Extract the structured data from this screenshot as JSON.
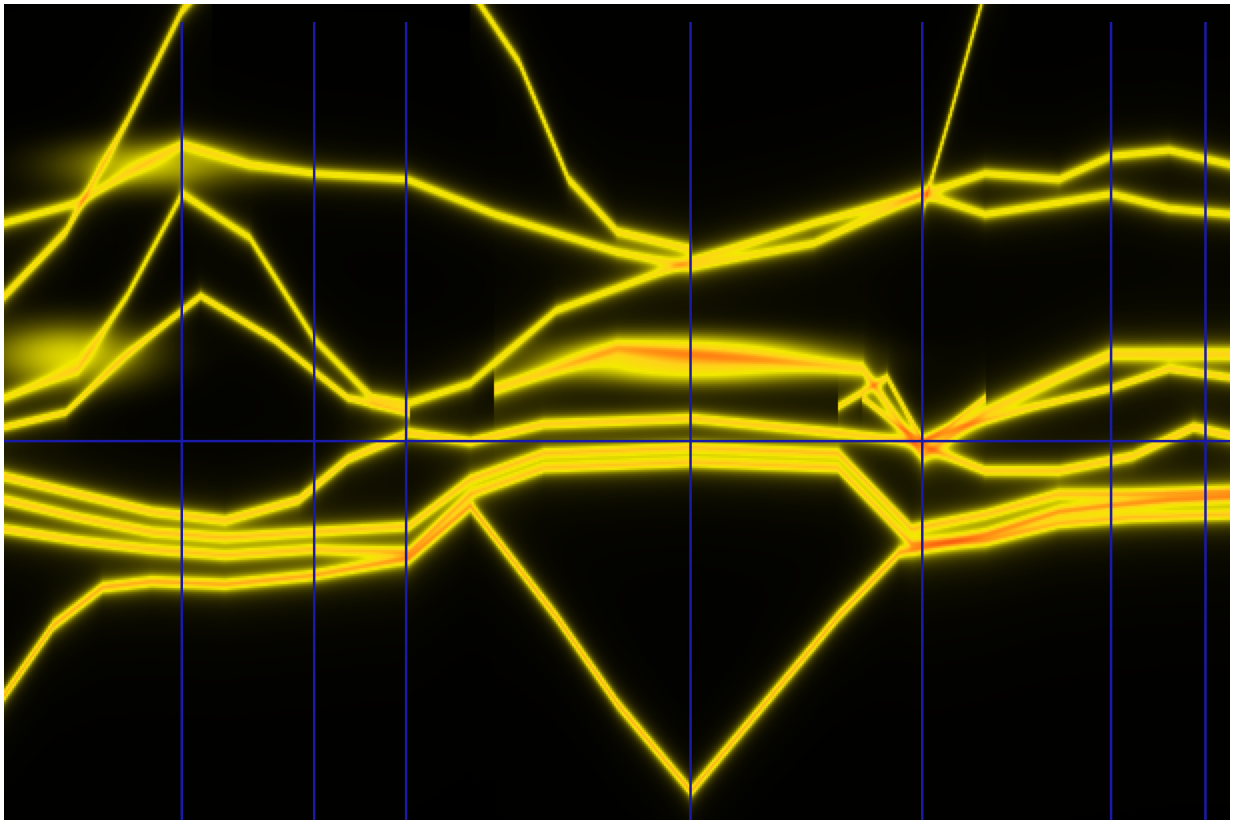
{
  "chart_data": {
    "type": "heatmap",
    "title": "",
    "xlabel": "",
    "ylabel": "",
    "x_range": [
      0,
      1
    ],
    "y_range": [
      -1.3,
      1.5
    ],
    "grid": false,
    "legend": "none",
    "colormap": [
      "#000000",
      "#5a5400",
      "#f2ea00",
      "#ffd21a",
      "#ff7a12",
      "#e8300c"
    ],
    "background_color": "#000000",
    "marker_color": "#1a1aa8",
    "fermi_level": 0.0,
    "high_symmetry_points": [
      0.145,
      0.253,
      0.328,
      0.56,
      0.749,
      0.903,
      0.98
    ],
    "bands": [
      {
        "width": 0.035,
        "peak": 0.8,
        "points": [
          [
            0.0,
            -0.87
          ],
          [
            0.04,
            -0.63
          ],
          [
            0.08,
            -0.5
          ],
          [
            0.12,
            -0.48
          ],
          [
            0.18,
            -0.49
          ],
          [
            0.25,
            -0.46
          ],
          [
            0.33,
            -0.4
          ],
          [
            0.38,
            -0.22
          ],
          [
            0.45,
            -0.6
          ],
          [
            0.5,
            -0.9
          ],
          [
            0.56,
            -1.2
          ],
          [
            0.62,
            -0.9
          ],
          [
            0.68,
            -0.6
          ],
          [
            0.73,
            -0.38
          ],
          [
            0.8,
            -0.32
          ],
          [
            0.86,
            -0.24
          ],
          [
            0.9,
            -0.22
          ],
          [
            0.95,
            -0.2
          ],
          [
            1.0,
            -0.19
          ]
        ]
      },
      {
        "width": 0.035,
        "peak": 0.65,
        "points": [
          [
            0.0,
            -0.3
          ],
          [
            0.06,
            -0.34
          ],
          [
            0.12,
            -0.37
          ],
          [
            0.18,
            -0.39
          ],
          [
            0.25,
            -0.37
          ],
          [
            0.33,
            -0.38
          ],
          [
            0.38,
            -0.18
          ],
          [
            0.44,
            -0.09
          ],
          [
            0.56,
            -0.07
          ],
          [
            0.68,
            -0.09
          ],
          [
            0.74,
            -0.35
          ],
          [
            0.8,
            -0.34
          ],
          [
            0.86,
            -0.28
          ],
          [
            0.92,
            -0.26
          ],
          [
            1.0,
            -0.25
          ]
        ]
      },
      {
        "width": 0.035,
        "peak": 0.65,
        "points": [
          [
            0.0,
            -0.2
          ],
          [
            0.06,
            -0.26
          ],
          [
            0.12,
            -0.31
          ],
          [
            0.18,
            -0.33
          ],
          [
            0.25,
            -0.31
          ],
          [
            0.33,
            -0.29
          ],
          [
            0.38,
            -0.13
          ],
          [
            0.44,
            -0.04
          ],
          [
            0.56,
            -0.02
          ],
          [
            0.68,
            -0.04
          ],
          [
            0.74,
            -0.3
          ],
          [
            0.8,
            -0.25
          ],
          [
            0.86,
            -0.18
          ],
          [
            0.92,
            -0.18
          ],
          [
            1.0,
            -0.17
          ]
        ]
      },
      {
        "width": 0.035,
        "peak": 0.65,
        "points": [
          [
            0.0,
            -0.12
          ],
          [
            0.06,
            -0.18
          ],
          [
            0.12,
            -0.24
          ],
          [
            0.18,
            -0.27
          ],
          [
            0.24,
            -0.2
          ],
          [
            0.28,
            -0.06
          ],
          [
            0.33,
            0.03
          ],
          [
            0.38,
            0.0
          ],
          [
            0.44,
            0.06
          ],
          [
            0.56,
            0.08
          ],
          [
            0.68,
            0.03
          ],
          [
            0.74,
            0.0
          ],
          [
            0.8,
            -0.1
          ],
          [
            0.86,
            -0.1
          ],
          [
            0.92,
            -0.05
          ],
          [
            0.97,
            0.05
          ],
          [
            1.0,
            0.02
          ]
        ]
      },
      {
        "width": 0.04,
        "peak": 0.45,
        "points": [
          [
            0.0,
            0.15
          ],
          [
            0.06,
            0.25
          ],
          [
            0.1,
            0.5
          ],
          [
            0.145,
            0.85
          ],
          [
            0.2,
            0.7
          ],
          [
            0.253,
            0.35
          ],
          [
            0.3,
            0.15
          ],
          [
            0.328,
            0.13
          ],
          [
            0.38,
            0.2
          ],
          [
            0.45,
            0.45
          ],
          [
            0.56,
            0.62
          ],
          [
            0.66,
            0.75
          ],
          [
            0.749,
            0.85
          ],
          [
            0.8,
            0.78
          ],
          [
            0.86,
            0.82
          ],
          [
            0.903,
            0.85
          ],
          [
            0.95,
            0.8
          ],
          [
            1.0,
            0.78
          ]
        ]
      },
      {
        "width": 0.04,
        "peak": 0.45,
        "points": [
          [
            0.0,
            0.75
          ],
          [
            0.06,
            0.82
          ],
          [
            0.1,
            0.92
          ],
          [
            0.145,
            1.02
          ],
          [
            0.2,
            0.95
          ],
          [
            0.253,
            0.92
          ],
          [
            0.328,
            0.9
          ],
          [
            0.4,
            0.78
          ],
          [
            0.5,
            0.65
          ],
          [
            0.56,
            0.6
          ],
          [
            0.66,
            0.68
          ],
          [
            0.749,
            0.85
          ],
          [
            0.8,
            0.92
          ],
          [
            0.86,
            0.9
          ],
          [
            0.903,
            0.98
          ],
          [
            0.95,
            1.0
          ],
          [
            1.0,
            0.95
          ]
        ]
      },
      {
        "width": 0.04,
        "peak": 0.55,
        "points": [
          [
            0.0,
            0.5
          ],
          [
            0.05,
            0.72
          ],
          [
            0.1,
            1.1
          ],
          [
            0.145,
            1.48
          ],
          [
            0.17,
            1.6
          ]
        ]
      },
      {
        "width": 0.04,
        "peak": 0.5,
        "points": [
          [
            0.38,
            1.55
          ],
          [
            0.42,
            1.3
          ],
          [
            0.46,
            0.9
          ],
          [
            0.5,
            0.72
          ],
          [
            0.56,
            0.66
          ]
        ]
      },
      {
        "width": 0.04,
        "peak": 0.5,
        "points": [
          [
            0.749,
            0.8
          ],
          [
            0.77,
            1.1
          ],
          [
            0.8,
            1.55
          ],
          [
            0.82,
            1.7
          ]
        ]
      },
      {
        "width": 0.05,
        "peak": 0.6,
        "points": [
          [
            0.4,
            0.18
          ],
          [
            0.5,
            0.32
          ],
          [
            0.56,
            0.3
          ],
          [
            0.62,
            0.28
          ],
          [
            0.7,
            0.25
          ],
          [
            0.749,
            -0.05
          ],
          [
            0.8,
            0.1
          ],
          [
            0.86,
            0.22
          ],
          [
            0.903,
            0.3
          ],
          [
            1.0,
            0.3
          ]
        ]
      },
      {
        "width": 0.03,
        "peak": 0.55,
        "points": [
          [
            0.0,
            0.05
          ],
          [
            0.05,
            0.1
          ],
          [
            0.1,
            0.3
          ],
          [
            0.16,
            0.5
          ],
          [
            0.22,
            0.35
          ],
          [
            0.28,
            0.15
          ],
          [
            0.33,
            0.1
          ]
        ]
      },
      {
        "width": 0.03,
        "peak": 0.55,
        "points": [
          [
            0.68,
            0.12
          ],
          [
            0.72,
            0.22
          ],
          [
            0.749,
            0.0
          ],
          [
            0.78,
            0.05
          ],
          [
            0.84,
            0.12
          ],
          [
            0.9,
            0.18
          ],
          [
            0.95,
            0.25
          ],
          [
            1.0,
            0.22
          ]
        ]
      },
      {
        "width": 0.025,
        "peak": 0.55,
        "points": [
          [
            0.7,
            0.15
          ],
          [
            0.73,
            0.05
          ],
          [
            0.749,
            0.0
          ],
          [
            0.77,
            0.05
          ],
          [
            0.8,
            0.15
          ]
        ]
      }
    ],
    "hot_spots": [
      {
        "x": 0.56,
        "y": 0.28,
        "rx": 0.09,
        "ry": 0.07,
        "w": 0.55
      },
      {
        "x": 0.05,
        "y": 0.3,
        "rx": 0.06,
        "ry": 0.1,
        "w": 0.3
      },
      {
        "x": 0.12,
        "y": 0.95,
        "rx": 0.07,
        "ry": 0.08,
        "w": 0.25
      }
    ]
  }
}
